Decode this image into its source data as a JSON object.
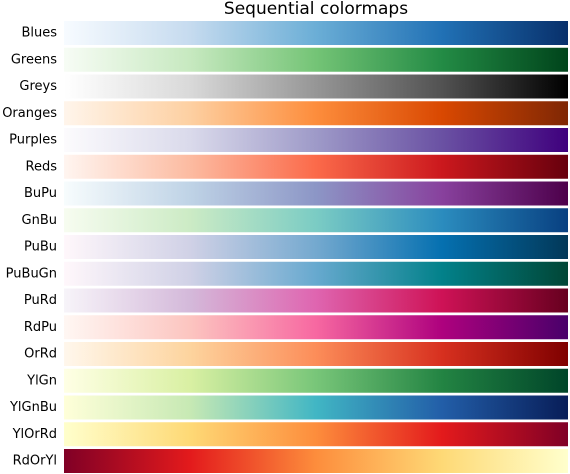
{
  "title": "Sequential colormaps",
  "colormaps": [
    {
      "name": "Blues",
      "colors": [
        "#f7fbff",
        "#c6dbef",
        "#6baed6",
        "#2171b5",
        "#08306b"
      ]
    },
    {
      "name": "Greens",
      "colors": [
        "#f7fcf5",
        "#c7e9c0",
        "#74c476",
        "#238b45",
        "#00441b"
      ]
    },
    {
      "name": "Greys",
      "colors": [
        "#ffffff",
        "#d9d9d9",
        "#969696",
        "#525252",
        "#000000"
      ]
    },
    {
      "name": "Oranges",
      "colors": [
        "#fff5eb",
        "#fdd0a2",
        "#fd8d3c",
        "#d94801",
        "#7f2704"
      ]
    },
    {
      "name": "Purples",
      "colors": [
        "#fcfbfd",
        "#dadaeb",
        "#9e9ac8",
        "#6a51a3",
        "#3f007d"
      ]
    },
    {
      "name": "Reds",
      "colors": [
        "#fff5f0",
        "#fcbba1",
        "#fb6a4a",
        "#cb181d",
        "#67000d"
      ]
    },
    {
      "name": "BuPu",
      "colors": [
        "#f7fcfd",
        "#bfd3e6",
        "#8c96c6",
        "#88419d",
        "#4d004b"
      ]
    },
    {
      "name": "GnBu",
      "colors": [
        "#f7fcf0",
        "#ccebc5",
        "#7bccc4",
        "#2b8cbe",
        "#084081"
      ]
    },
    {
      "name": "PuBu",
      "colors": [
        "#fff7fb",
        "#d0d1e6",
        "#74a9cf",
        "#0570b0",
        "#023858"
      ]
    },
    {
      "name": "PuBuGn",
      "colors": [
        "#fff7fb",
        "#d0d1e6",
        "#67a9cf",
        "#02818a",
        "#014636"
      ]
    },
    {
      "name": "PuRd",
      "colors": [
        "#f7f4f9",
        "#d4b9da",
        "#df65b0",
        "#ce1256",
        "#67001f"
      ]
    },
    {
      "name": "RdPu",
      "colors": [
        "#fff7f3",
        "#fcc5c0",
        "#f768a1",
        "#ae017e",
        "#49006a"
      ]
    },
    {
      "name": "OrRd",
      "colors": [
        "#fff7ec",
        "#fdd49e",
        "#fc8d59",
        "#d7301f",
        "#7f0000"
      ]
    },
    {
      "name": "YlGn",
      "colors": [
        "#ffffe5",
        "#d9f0a3",
        "#78c679",
        "#238443",
        "#004529"
      ]
    },
    {
      "name": "YlGnBu",
      "colors": [
        "#ffffd9",
        "#c7e9b4",
        "#41b6c4",
        "#225ea8",
        "#081d58"
      ]
    },
    {
      "name": "YlOrRd",
      "colors": [
        "#ffffcc",
        "#fed976",
        "#fd8d3c",
        "#e31a1c",
        "#800026"
      ]
    },
    {
      "name": "RdOrYl",
      "colors": [
        "#800026",
        "#e31a1c",
        "#fd8d3c",
        "#fed976",
        "#ffffcc"
      ]
    }
  ]
}
